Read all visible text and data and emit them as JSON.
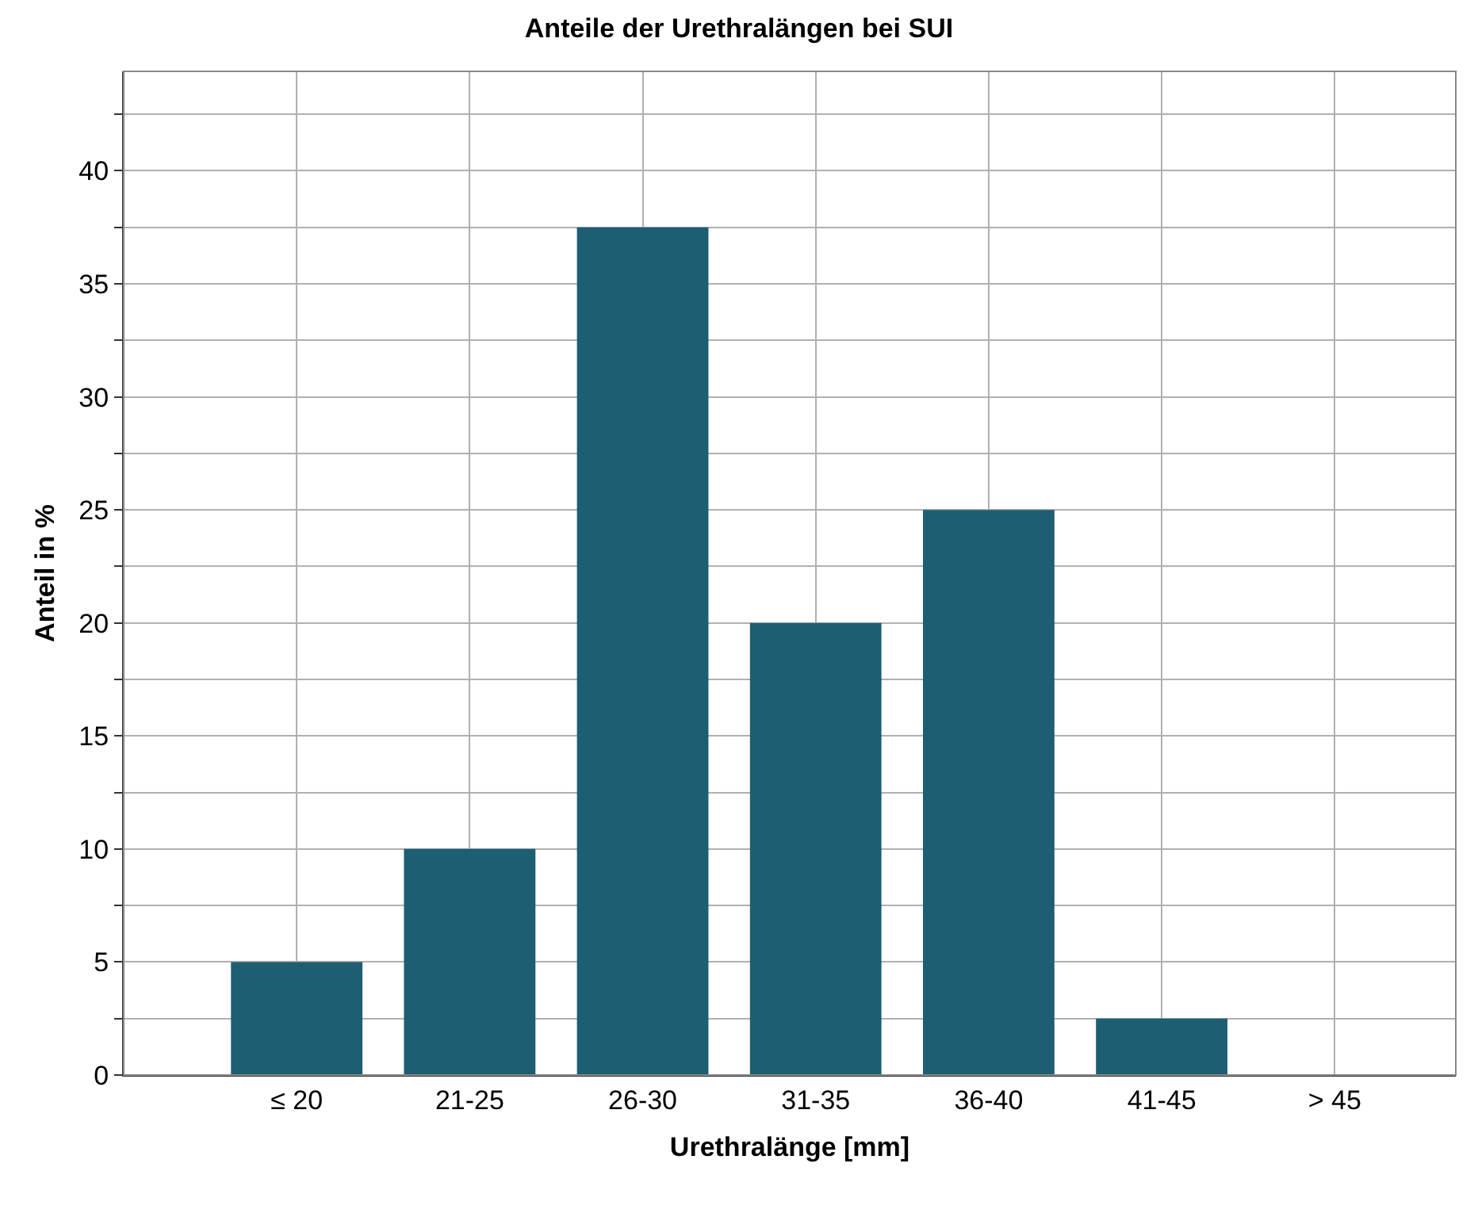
{
  "chart_data": {
    "type": "bar",
    "title": "Anteile der Urethralängen bei SUI",
    "xlabel": "Urethralänge [mm]",
    "ylabel": "Anteil in %",
    "categories": [
      "≤ 20",
      "21-25",
      "26-30",
      "31-35",
      "36-40",
      "41-45",
      "> 45"
    ],
    "values": [
      5,
      10,
      37.5,
      20,
      25,
      2.5,
      0
    ],
    "color": "#1d5e73",
    "ylim": [
      0,
      44.4
    ],
    "yticks": [
      0,
      {
        "value": 2.5,
        "label": null
      },
      5,
      {
        "value": 7.5,
        "label": null
      },
      10,
      {
        "value": 12.5,
        "label": null
      },
      15,
      {
        "value": 17.5,
        "label": null
      },
      20,
      {
        "value": 22.5,
        "label": null
      },
      25,
      {
        "value": 27.5,
        "label": null
      },
      30,
      {
        "value": 32.5,
        "label": null
      },
      35,
      {
        "value": 37.5,
        "label": null
      },
      40,
      {
        "value": 42.5,
        "label": null
      }
    ],
    "grid": true
  }
}
